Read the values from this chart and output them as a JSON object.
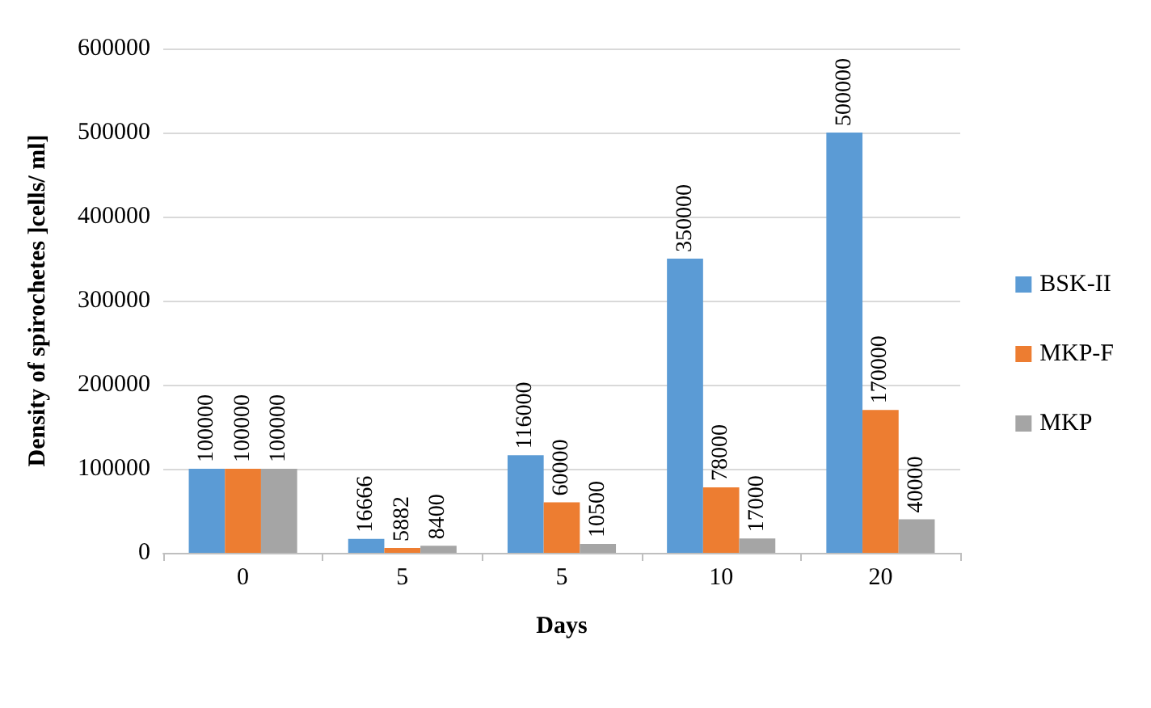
{
  "chart_data": {
    "type": "bar",
    "xlabel": "Days",
    "ylabel": "Density of spirochetes ]cells/ ml]",
    "categories": [
      "0",
      "5",
      "5",
      "10",
      "20"
    ],
    "series": [
      {
        "name": "BSK-II",
        "color": "#5b9bd5",
        "values": [
          100000,
          16666,
          116000,
          350000,
          500000
        ]
      },
      {
        "name": "MKP-F",
        "color": "#ed7d31",
        "values": [
          100000,
          5882,
          60000,
          78000,
          170000
        ]
      },
      {
        "name": "MKP",
        "color": "#a5a5a5",
        "values": [
          100000,
          8400,
          10500,
          17000,
          40000
        ]
      }
    ],
    "ylim": [
      0,
      600000
    ],
    "yticks": [
      0,
      100000,
      200000,
      300000,
      400000,
      500000,
      600000
    ],
    "grid": "y",
    "legend": "right",
    "data_labels": true
  }
}
